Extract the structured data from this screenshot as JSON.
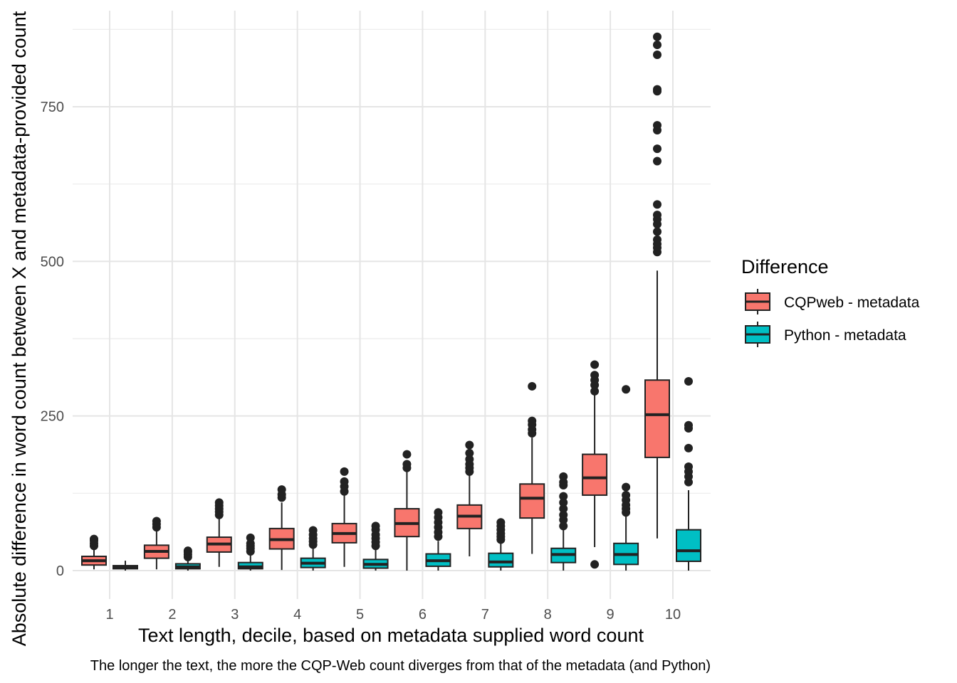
{
  "chart_data": {
    "type": "box",
    "xlabel": "Text length, decile, based on metadata supplied word count",
    "ylabel": "Absolute difference in word count between X and metadata-provided count",
    "caption": "The longer the text, the more the CQP-Web count diverges from that of the metadata (and Python)",
    "ylim": [
      -30,
      905
    ],
    "yticks": [
      0,
      250,
      500,
      750
    ],
    "categories": [
      "1",
      "2",
      "3",
      "4",
      "5",
      "6",
      "7",
      "8",
      "9",
      "10"
    ],
    "grid": true,
    "legend": {
      "title": "Difference",
      "position": "right"
    },
    "series": [
      {
        "name": "CQPweb - metadata",
        "color": "#F8766D",
        "boxes": [
          {
            "min": 2,
            "q1": 9,
            "median": 16,
            "q3": 23,
            "max": 36,
            "outliers": [
              40,
              44,
              48,
              51
            ]
          },
          {
            "min": 2,
            "q1": 20,
            "median": 31,
            "q3": 41,
            "max": 66,
            "outliers": [
              70,
              75,
              80
            ]
          },
          {
            "min": 6,
            "q1": 30,
            "median": 43,
            "q3": 54,
            "max": 87,
            "outliers": [
              90,
              95,
              100,
              105,
              110
            ]
          },
          {
            "min": 1,
            "q1": 35,
            "median": 50,
            "q3": 68,
            "max": 110,
            "outliers": [
              118,
              123,
              131
            ]
          },
          {
            "min": 6,
            "q1": 45,
            "median": 60,
            "q3": 76,
            "max": 122,
            "outliers": [
              128,
              136,
              144,
              160
            ]
          },
          {
            "min": 0,
            "q1": 55,
            "median": 76,
            "q3": 100,
            "max": 160,
            "outliers": [
              166,
              172,
              188
            ]
          },
          {
            "min": 23,
            "q1": 68,
            "median": 88,
            "q3": 106,
            "max": 155,
            "outliers": [
              160,
              166,
              172,
              180,
              190,
              203
            ]
          },
          {
            "min": 27,
            "q1": 85,
            "median": 117,
            "q3": 140,
            "max": 215,
            "outliers": [
              222,
              228,
              236,
              242,
              298
            ]
          },
          {
            "min": 38,
            "q1": 122,
            "median": 150,
            "q3": 188,
            "max": 285,
            "outliers": [
              10,
              290,
              300,
              308,
              316,
              333
            ]
          },
          {
            "min": 52,
            "q1": 183,
            "median": 252,
            "q3": 308,
            "max": 485,
            "outliers": [
              515,
              522,
              528,
              535,
              548,
              560,
              568,
              575,
              592,
              662,
              682,
              712,
              720,
              775,
              778,
              834,
              850,
              863
            ]
          }
        ]
      },
      {
        "name": "Python - metadata",
        "color": "#00BFC4",
        "boxes": [
          {
            "min": 0,
            "q1": 3,
            "median": 5,
            "q3": 8,
            "max": 16,
            "outliers": []
          },
          {
            "min": 0,
            "q1": 3,
            "median": 6,
            "q3": 11,
            "max": 18,
            "outliers": [
              22,
              26,
              30,
              32
            ]
          },
          {
            "min": 0,
            "q1": 3,
            "median": 6,
            "q3": 13,
            "max": 27,
            "outliers": [
              31,
              36,
              40,
              44,
              53
            ]
          },
          {
            "min": 0,
            "q1": 5,
            "median": 12,
            "q3": 20,
            "max": 37,
            "outliers": [
              42,
              47,
              52,
              58,
              65
            ]
          },
          {
            "min": 0,
            "q1": 4,
            "median": 10,
            "q3": 18,
            "max": 36,
            "outliers": [
              40,
              46,
              52,
              58,
              66,
              72
            ]
          },
          {
            "min": 0,
            "q1": 7,
            "median": 16,
            "q3": 27,
            "max": 48,
            "outliers": [
              55,
              62,
              70,
              78,
              86,
              94
            ]
          },
          {
            "min": 0,
            "q1": 6,
            "median": 14,
            "q3": 28,
            "max": 44,
            "outliers": [
              50,
              55,
              60,
              66,
              72,
              78
            ]
          },
          {
            "min": 0,
            "q1": 13,
            "median": 26,
            "q3": 36,
            "max": 66,
            "outliers": [
              72,
              82,
              90,
              100,
              110,
              120,
              138,
              143,
              152
            ]
          },
          {
            "min": 0,
            "q1": 10,
            "median": 26,
            "q3": 44,
            "max": 88,
            "outliers": [
              94,
              100,
              106,
              114,
              122,
              135,
              293
            ]
          },
          {
            "min": 0,
            "q1": 15,
            "median": 32,
            "q3": 66,
            "max": 130,
            "outliers": [
              143,
              152,
              160,
              168,
              198,
              230,
              235,
              306
            ]
          }
        ]
      }
    ]
  }
}
